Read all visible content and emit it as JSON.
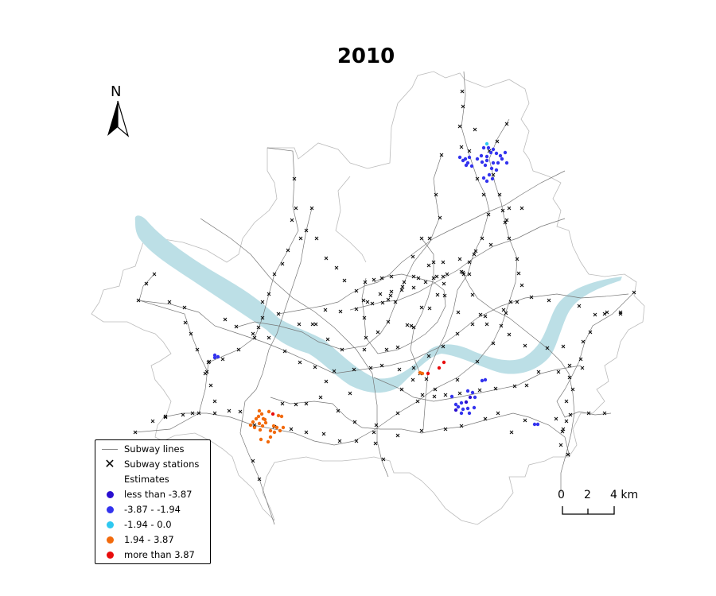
{
  "title": "2010",
  "north_arrow": {
    "label": "N",
    "icon": "north-arrow-icon"
  },
  "legend": {
    "lines_label": "Subway lines",
    "stations_label": "Subway stations",
    "estimates_title": "Estimates",
    "classes": [
      {
        "label": "less than -3.87",
        "color": "#2a0fd0"
      },
      {
        "label": "-3.87 - -1.94",
        "color": "#3333ee"
      },
      {
        "label": "-1.94 - 0.0",
        "color": "#2ec8f0"
      },
      {
        "label": "1.94 - 3.87",
        "color": "#f26a0c"
      },
      {
        "label": "more than 3.87",
        "color": "#e80c0c"
      }
    ]
  },
  "scale_bar": {
    "ticks": [
      "0",
      "2",
      "4 km"
    ]
  },
  "colors": {
    "river": "#bcdfe6",
    "boundary": "#bbbbbb",
    "subway_line": "#777777",
    "station": "#111111"
  }
}
